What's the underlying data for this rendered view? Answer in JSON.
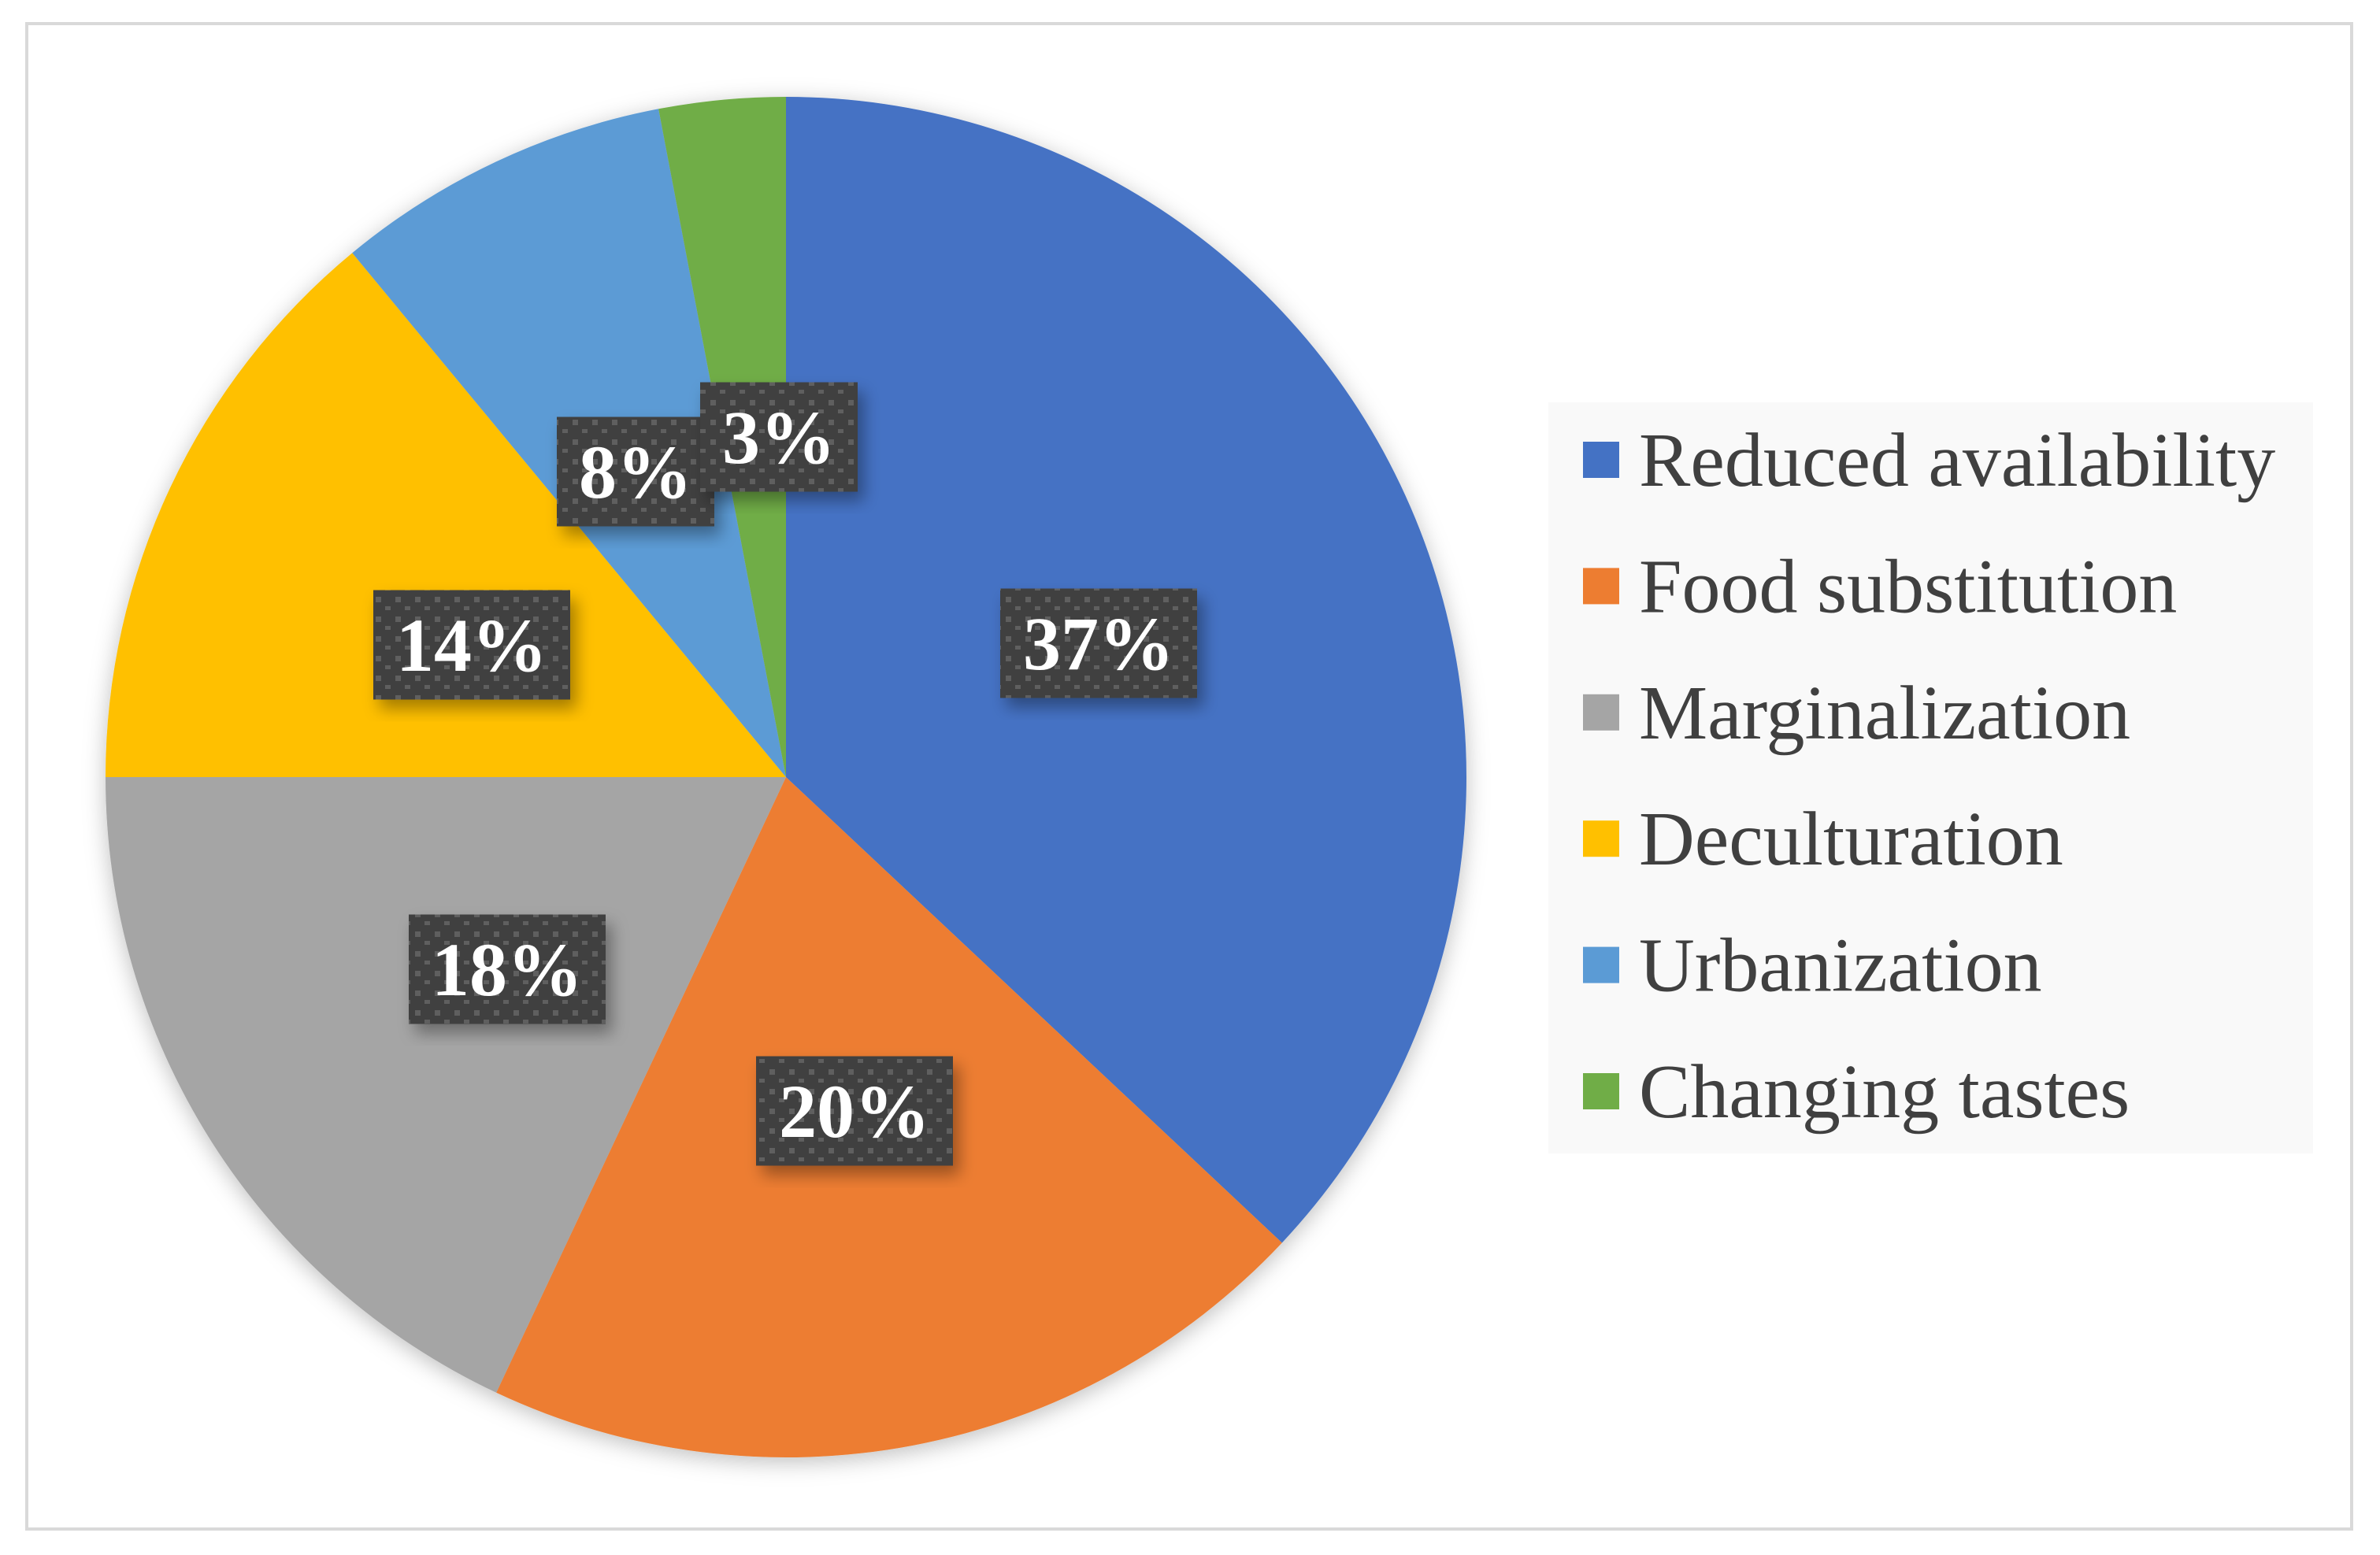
{
  "chart_data": {
    "type": "pie",
    "title": "",
    "start_angle": "12 o'clock, clockwise",
    "legend_position": "right",
    "slices": [
      {
        "label": "Reduced availability",
        "value": 37,
        "display": "37%",
        "color": "#4472C4"
      },
      {
        "label": "Food substitution",
        "value": 20,
        "display": "20%",
        "color": "#ED7D31"
      },
      {
        "label": "Marginalization",
        "value": 18,
        "display": "18%",
        "color": "#A5A5A5"
      },
      {
        "label": "Deculturation",
        "value": 14,
        "display": "14%",
        "color": "#FFC000"
      },
      {
        "label": "Urbanization",
        "value": 8,
        "display": "8%",
        "color": "#5B9BD5"
      },
      {
        "label": "Changing tastes",
        "value": 3,
        "display": "3%",
        "color": "#70AD47"
      }
    ]
  }
}
